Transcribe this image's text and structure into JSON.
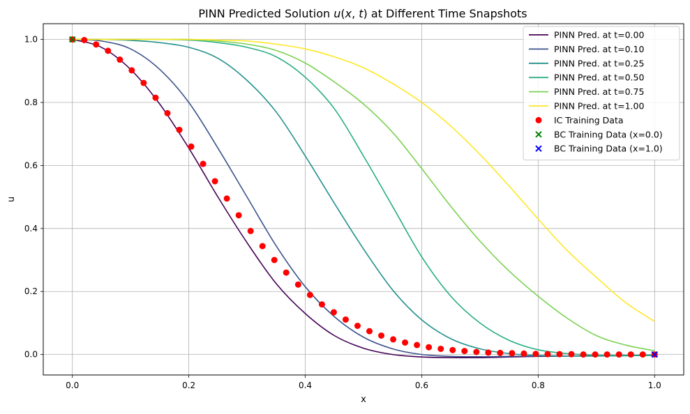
{
  "chart_data": {
    "type": "line",
    "title": "PINN Predicted Solution u(x, t) at Different Time Snapshots",
    "title_parts": {
      "prefix": "PINN Predicted Solution ",
      "math_u": "u",
      "math_open": "(",
      "math_x": "x",
      "math_comma": ", ",
      "math_t": "t",
      "math_close": ")",
      "suffix": " at Different Time Snapshots"
    },
    "xlabel": "x",
    "ylabel": "u",
    "xlim": [
      -0.05,
      1.05
    ],
    "ylim": [
      -0.065,
      1.05
    ],
    "xticks": [
      0.0,
      0.2,
      0.4,
      0.6,
      0.8,
      1.0
    ],
    "xtick_labels": [
      "0.0",
      "0.2",
      "0.4",
      "0.6",
      "0.8",
      "1.0"
    ],
    "yticks": [
      0.0,
      0.2,
      0.4,
      0.6,
      0.8,
      1.0
    ],
    "ytick_labels": [
      "0.0",
      "0.2",
      "0.4",
      "0.6",
      "0.8",
      "1.0"
    ],
    "grid": true,
    "legend_position": "top-right",
    "series": [
      {
        "name": "PINN Pred. at t=0.00",
        "color": "#440154",
        "x": [
          0,
          0.05,
          0.1,
          0.15,
          0.2,
          0.25,
          0.3,
          0.35,
          0.4,
          0.45,
          0.5,
          0.55,
          0.6,
          0.65,
          0.7,
          0.75,
          0.8,
          0.85,
          0.9,
          0.95,
          1.0
        ],
        "y": [
          1.0,
          0.975,
          0.905,
          0.795,
          0.655,
          0.5,
          0.355,
          0.225,
          0.13,
          0.06,
          0.02,
          0.0,
          -0.008,
          -0.01,
          -0.01,
          -0.008,
          -0.006,
          -0.005,
          -0.004,
          -0.003,
          -0.002
        ]
      },
      {
        "name": "PINN Pred. at t=0.10",
        "color": "#3b528b",
        "x": [
          0,
          0.05,
          0.1,
          0.15,
          0.2,
          0.25,
          0.3,
          0.35,
          0.4,
          0.45,
          0.5,
          0.55,
          0.6,
          0.65,
          0.7,
          0.75,
          0.8,
          0.85,
          0.9,
          0.95,
          1.0
        ],
        "y": [
          1.0,
          0.995,
          0.97,
          0.905,
          0.8,
          0.655,
          0.5,
          0.345,
          0.215,
          0.12,
          0.055,
          0.018,
          0.0,
          -0.006,
          -0.007,
          -0.006,
          -0.005,
          -0.005,
          -0.004,
          -0.003,
          -0.002
        ]
      },
      {
        "name": "PINN Pred. at t=0.25",
        "color": "#21908d",
        "x": [
          0,
          0.05,
          0.1,
          0.15,
          0.2,
          0.25,
          0.3,
          0.35,
          0.4,
          0.45,
          0.5,
          0.55,
          0.6,
          0.65,
          0.7,
          0.75,
          0.8,
          0.85,
          0.9,
          0.95,
          1.0
        ],
        "y": [
          1.0,
          1.0,
          0.997,
          0.99,
          0.975,
          0.94,
          0.87,
          0.77,
          0.63,
          0.48,
          0.335,
          0.205,
          0.11,
          0.05,
          0.018,
          0.003,
          -0.003,
          -0.005,
          -0.005,
          -0.004,
          -0.003
        ]
      },
      {
        "name": "PINN Pred. at t=0.50",
        "color": "#27ad81",
        "x": [
          0,
          0.05,
          0.1,
          0.15,
          0.2,
          0.25,
          0.3,
          0.35,
          0.4,
          0.45,
          0.5,
          0.55,
          0.6,
          0.65,
          0.7,
          0.75,
          0.8,
          0.85,
          0.9,
          0.95,
          1.0
        ],
        "y": [
          1.0,
          1.0,
          1.0,
          1.0,
          0.998,
          0.99,
          0.975,
          0.945,
          0.88,
          0.78,
          0.63,
          0.47,
          0.31,
          0.185,
          0.1,
          0.045,
          0.015,
          0.003,
          -0.002,
          -0.003,
          -0.003
        ]
      },
      {
        "name": "PINN Pred. at t=0.75",
        "color": "#7ad151",
        "x": [
          0,
          0.05,
          0.1,
          0.15,
          0.2,
          0.25,
          0.3,
          0.35,
          0.4,
          0.45,
          0.5,
          0.55,
          0.6,
          0.65,
          0.7,
          0.75,
          0.8,
          0.85,
          0.9,
          0.95,
          1.0
        ],
        "y": [
          1.0,
          1.0,
          1.0,
          1.0,
          1.0,
          0.995,
          0.985,
          0.965,
          0.925,
          0.865,
          0.795,
          0.705,
          0.59,
          0.47,
          0.36,
          0.265,
          0.185,
          0.115,
          0.06,
          0.03,
          0.012
        ]
      },
      {
        "name": "PINN Pred. at t=1.00",
        "color": "#fde725",
        "x": [
          0,
          0.05,
          0.1,
          0.15,
          0.2,
          0.25,
          0.3,
          0.35,
          0.4,
          0.45,
          0.5,
          0.55,
          0.6,
          0.65,
          0.7,
          0.75,
          0.8,
          0.85,
          0.9,
          0.95,
          1.0
        ],
        "y": [
          1.0,
          1.0,
          1.0,
          1.0,
          1.0,
          0.998,
          0.995,
          0.985,
          0.97,
          0.945,
          0.91,
          0.86,
          0.8,
          0.725,
          0.635,
          0.535,
          0.43,
          0.33,
          0.245,
          0.165,
          0.105
        ]
      }
    ],
    "scatter_series": [
      {
        "name": "IC Training Data",
        "color": "#ff0000",
        "marker": "circle",
        "x": [
          0.0,
          0.0204,
          0.0408,
          0.0612,
          0.0816,
          0.102,
          0.1224,
          0.1429,
          0.1633,
          0.1837,
          0.2041,
          0.2245,
          0.2449,
          0.2653,
          0.2857,
          0.3061,
          0.3265,
          0.3469,
          0.3673,
          0.3878,
          0.4082,
          0.4286,
          0.449,
          0.4694,
          0.4898,
          0.5102,
          0.5306,
          0.551,
          0.5714,
          0.5918,
          0.6122,
          0.6327,
          0.6531,
          0.6735,
          0.6939,
          0.7143,
          0.7347,
          0.7551,
          0.7755,
          0.7959,
          0.8163,
          0.8367,
          0.8571,
          0.8776,
          0.898,
          0.9184,
          0.9388,
          0.9592,
          0.9796,
          1.0
        ],
        "y": [
          1.0,
          0.998,
          0.984,
          0.964,
          0.936,
          0.902,
          0.862,
          0.815,
          0.766,
          0.713,
          0.66,
          0.605,
          0.55,
          0.495,
          0.442,
          0.392,
          0.344,
          0.3,
          0.26,
          0.222,
          0.189,
          0.159,
          0.134,
          0.111,
          0.091,
          0.074,
          0.06,
          0.048,
          0.038,
          0.03,
          0.023,
          0.018,
          0.014,
          0.011,
          0.008,
          0.006,
          0.005,
          0.004,
          0.003,
          0.002,
          0.001,
          0.001,
          0.001,
          0.0,
          0.0,
          0.0,
          0.0,
          0.0,
          0.0,
          0.0
        ]
      },
      {
        "name": "BC Training Data (x=0.0)",
        "color": "#008000",
        "marker": "x",
        "x": [
          0.0
        ],
        "y": [
          1.0
        ]
      },
      {
        "name": "BC Training Data (x=1.0)",
        "color": "#0000ff",
        "marker": "x",
        "x": [
          1.0
        ],
        "y": [
          0.0
        ]
      }
    ]
  }
}
